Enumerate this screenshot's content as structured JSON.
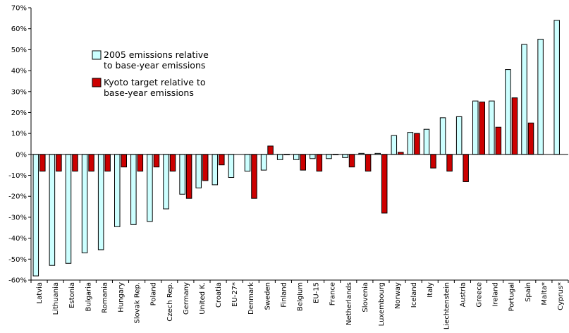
{
  "chart_data": {
    "type": "bar",
    "categories": [
      "Latvia",
      "Lithuania",
      "Estonia",
      "Bulgaria",
      "Romania",
      "Hungary",
      "Slovak Rep.",
      "Poland",
      "Czech Rep.",
      "Germany",
      "United K.",
      "Croatia",
      "EU-27*",
      "Denmark",
      "Sweden",
      "Finland",
      "Belgium",
      "EU-15",
      "France",
      "Netherlands",
      "Slovenia",
      "Luxembourg",
      "Norway",
      "Iceland",
      "Italy",
      "Liechtenstein",
      "Austria",
      "Greece",
      "Ireland",
      "Portugal",
      "Spain",
      "Malta*",
      "Cyprus*"
    ],
    "series": [
      {
        "name": "2005 emissions relative to base-year emissions",
        "color": "#ccffff",
        "values": [
          -58,
          -53,
          -52,
          -47,
          -45.5,
          -34.5,
          -33.5,
          -32,
          -26,
          -19,
          -16,
          -14.5,
          -11,
          -8,
          -7.5,
          -2.5,
          -2.5,
          -2,
          -2,
          -1.5,
          0.5,
          0.5,
          9,
          10.5,
          12,
          17.5,
          18,
          25.5,
          25.5,
          40.5,
          52.5,
          55,
          64
        ]
      },
      {
        "name": "Kyoto target relative to base-year emissions",
        "color": "#cc0000",
        "values": [
          -8,
          -8,
          -8,
          -8,
          -8,
          -6,
          -8,
          -6,
          -8,
          -21,
          -12.5,
          -5,
          null,
          -21,
          4,
          0,
          -7.5,
          -8,
          0,
          -6,
          -8,
          -28,
          1,
          10,
          -6.5,
          -8,
          -13,
          25,
          13,
          27,
          15,
          null,
          null
        ]
      }
    ],
    "y_tick_labels": [
      "70%",
      "60%",
      "50%",
      "40%",
      "30%",
      "20%",
      "10%",
      "0%",
      "-10%",
      "-20%",
      "-30%",
      "-40%",
      "-50%",
      "-60%"
    ],
    "ylim": [
      -60,
      70
    ],
    "y_unit": "%",
    "grid": false,
    "legend_position": "upper-left"
  }
}
